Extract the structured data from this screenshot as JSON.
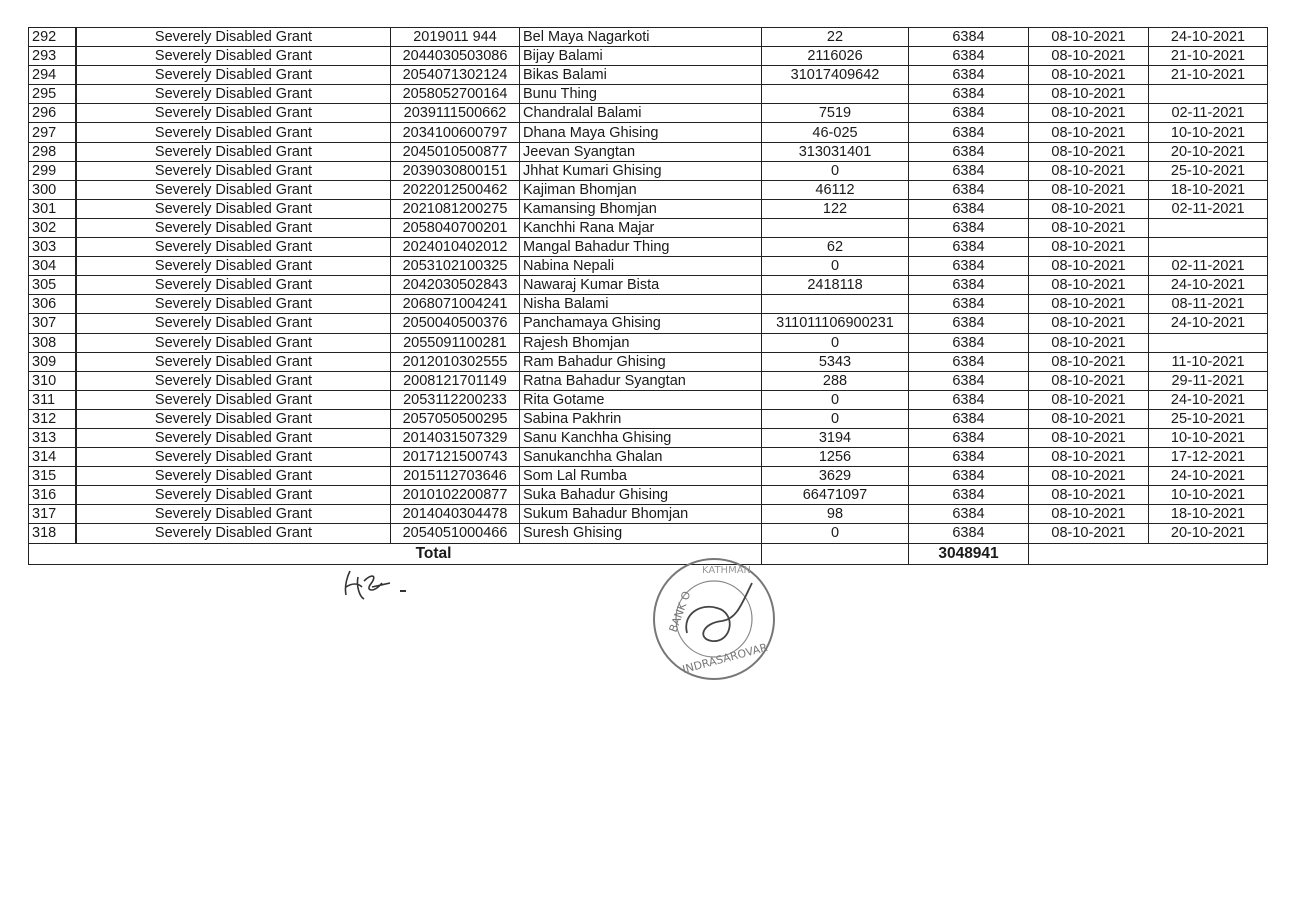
{
  "rows": [
    {
      "sn": "292",
      "grant": "Severely Disabled Grant",
      "id": "2019011  944",
      "name": "Bel Maya Nagarkoti",
      "account": "22",
      "amount": "6384",
      "date1": "08-10-2021",
      "date2": "24-10-2021"
    },
    {
      "sn": "293",
      "grant": "Severely Disabled Grant",
      "id": "2044030503086",
      "name": "Bijay Balami",
      "account": "2116026",
      "amount": "6384",
      "date1": "08-10-2021",
      "date2": "21-10-2021"
    },
    {
      "sn": "294",
      "grant": "Severely Disabled Grant",
      "id": "2054071302124",
      "name": "Bikas Balami",
      "account": "31017409642",
      "amount": "6384",
      "date1": "08-10-2021",
      "date2": "21-10-2021"
    },
    {
      "sn": "295",
      "grant": "Severely Disabled Grant",
      "id": "2058052700164",
      "name": "Bunu Thing",
      "account": "",
      "amount": "6384",
      "date1": "08-10-2021",
      "date2": ""
    },
    {
      "sn": "296",
      "grant": "Severely Disabled Grant",
      "id": "2039111500662",
      "name": "Chandralal Balami",
      "account": "7519",
      "amount": "6384",
      "date1": "08-10-2021",
      "date2": "02-11-2021"
    },
    {
      "sn": "297",
      "grant": "Severely Disabled Grant",
      "id": "2034100600797",
      "name": "Dhana Maya Ghising",
      "account": "46-025",
      "amount": "6384",
      "date1": "08-10-2021",
      "date2": "10-10-2021"
    },
    {
      "sn": "298",
      "grant": "Severely Disabled Grant",
      "id": "2045010500877",
      "name": "Jeevan Syangtan",
      "account": "313031401",
      "amount": "6384",
      "date1": "08-10-2021",
      "date2": "20-10-2021"
    },
    {
      "sn": "299",
      "grant": "Severely Disabled Grant",
      "id": "2039030800151",
      "name": "Jhhat Kumari Ghising",
      "account": "0",
      "amount": "6384",
      "date1": "08-10-2021",
      "date2": "25-10-2021"
    },
    {
      "sn": "300",
      "grant": "Severely Disabled Grant",
      "id": "2022012500462",
      "name": "Kajiman Bhomjan",
      "account": "46112",
      "amount": "6384",
      "date1": "08-10-2021",
      "date2": "18-10-2021"
    },
    {
      "sn": "301",
      "grant": "Severely Disabled Grant",
      "id": "2021081200275",
      "name": "Kamansing Bhomjan",
      "account": "122",
      "amount": "6384",
      "date1": "08-10-2021",
      "date2": "02-11-2021"
    },
    {
      "sn": "302",
      "grant": "Severely Disabled Grant",
      "id": "2058040700201",
      "name": "Kanchhi Rana Majar",
      "account": "",
      "amount": "6384",
      "date1": "08-10-2021",
      "date2": ""
    },
    {
      "sn": "303",
      "grant": "Severely Disabled Grant",
      "id": "2024010402012",
      "name": "Mangal Bahadur Thing",
      "account": "62",
      "amount": "6384",
      "date1": "08-10-2021",
      "date2": ""
    },
    {
      "sn": "304",
      "grant": "Severely Disabled Grant",
      "id": "2053102100325",
      "name": "Nabina Nepali",
      "account": "0",
      "amount": "6384",
      "date1": "08-10-2021",
      "date2": "02-11-2021"
    },
    {
      "sn": "305",
      "grant": "Severely Disabled Grant",
      "id": "2042030502843",
      "name": "Nawaraj Kumar Bista",
      "account": "2418118",
      "amount": "6384",
      "date1": "08-10-2021",
      "date2": "24-10-2021"
    },
    {
      "sn": "306",
      "grant": "Severely Disabled Grant",
      "id": "2068071004241",
      "name": "Nisha Balami",
      "account": "",
      "amount": "6384",
      "date1": "08-10-2021",
      "date2": "08-11-2021"
    },
    {
      "sn": "307",
      "grant": "Severely Disabled Grant",
      "id": "2050040500376",
      "name": "Panchamaya Ghising",
      "account": "311011106900231",
      "amount": "6384",
      "date1": "08-10-2021",
      "date2": "24-10-2021"
    },
    {
      "sn": "308",
      "grant": "Severely Disabled Grant",
      "id": "2055091100281",
      "name": "Rajesh Bhomjan",
      "account": "0",
      "amount": "6384",
      "date1": "08-10-2021",
      "date2": ""
    },
    {
      "sn": "309",
      "grant": "Severely Disabled Grant",
      "id": "2012010302555",
      "name": "Ram Bahadur Ghising",
      "account": "5343",
      "amount": "6384",
      "date1": "08-10-2021",
      "date2": "11-10-2021"
    },
    {
      "sn": "310",
      "grant": "Severely Disabled Grant",
      "id": "2008121701149",
      "name": "Ratna Bahadur Syangtan",
      "account": "288",
      "amount": "6384",
      "date1": "08-10-2021",
      "date2": "29-11-2021"
    },
    {
      "sn": "311",
      "grant": "Severely Disabled Grant",
      "id": "2053112200233",
      "name": "Rita Gotame",
      "account": "0",
      "amount": "6384",
      "date1": "08-10-2021",
      "date2": "24-10-2021"
    },
    {
      "sn": "312",
      "grant": "Severely Disabled Grant",
      "id": "2057050500295",
      "name": "Sabina Pakhrin",
      "account": "0",
      "amount": "6384",
      "date1": "08-10-2021",
      "date2": "25-10-2021"
    },
    {
      "sn": "313",
      "grant": "Severely Disabled Grant",
      "id": "2014031507329",
      "name": "Sanu Kanchha Ghising",
      "account": "3194",
      "amount": "6384",
      "date1": "08-10-2021",
      "date2": "10-10-2021"
    },
    {
      "sn": "314",
      "grant": "Severely Disabled Grant",
      "id": "2017121500743",
      "name": "Sanukanchha Ghalan",
      "account": "1256",
      "amount": "6384",
      "date1": "08-10-2021",
      "date2": "17-12-2021"
    },
    {
      "sn": "315",
      "grant": "Severely Disabled Grant",
      "id": "2015112703646",
      "name": "Som Lal Rumba",
      "account": "3629",
      "amount": "6384",
      "date1": "08-10-2021",
      "date2": "24-10-2021"
    },
    {
      "sn": "316",
      "grant": "Severely Disabled Grant",
      "id": "2010102200877",
      "name": "Suka Bahadur Ghising",
      "account": "66471097",
      "amount": "6384",
      "date1": "08-10-2021",
      "date2": "10-10-2021"
    },
    {
      "sn": "317",
      "grant": "Severely Disabled Grant",
      "id": "2014040304478",
      "name": "Sukum Bahadur Bhomjan",
      "account": "98",
      "amount": "6384",
      "date1": "08-10-2021",
      "date2": "18-10-2021"
    },
    {
      "sn": "318",
      "grant": "Severely Disabled Grant",
      "id": "2054051000466",
      "name": "Suresh Ghising",
      "account": "0",
      "amount": "6384",
      "date1": "08-10-2021",
      "date2": "20-10-2021"
    }
  ],
  "total": {
    "label": "Total",
    "amount": "3048941"
  },
  "stamp": {
    "text_top": "BANK OF KATHMANDU",
    "text_bottom": "INDRASAROVAR"
  }
}
